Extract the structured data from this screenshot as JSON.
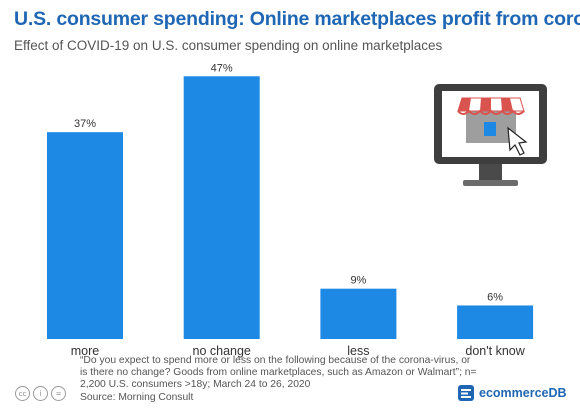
{
  "header": {
    "title": "U.S. consumer spending: Online marketplaces profit from corona",
    "subtitle": "Effect of COVID-19 on U.S. consumer spending on online marketplaces"
  },
  "chart_data": {
    "type": "bar",
    "categories": [
      "more",
      "no change",
      "less",
      "don't know"
    ],
    "values": [
      37,
      47,
      9,
      6
    ],
    "value_labels": [
      "37%",
      "47%",
      "9%",
      "6%"
    ],
    "ylim": [
      0,
      50
    ],
    "bar_color": "#1e88e5",
    "grid": false
  },
  "footer": {
    "note": "“Do you expect to spend more or less on the following because of the corona-virus, or is there no change? Goods from online marketplaces, such as Amazon or Walmart”; n= 2,200 U.S. consumers >18y; March 24 to 26, 2020",
    "source": "Source: Morning Consult",
    "brand": "ecommerceDB",
    "license_icons": [
      "cc",
      "i",
      "="
    ]
  },
  "colors": {
    "accent": "#1f67b4",
    "bar": "#1e88e5",
    "text": "#555555"
  }
}
